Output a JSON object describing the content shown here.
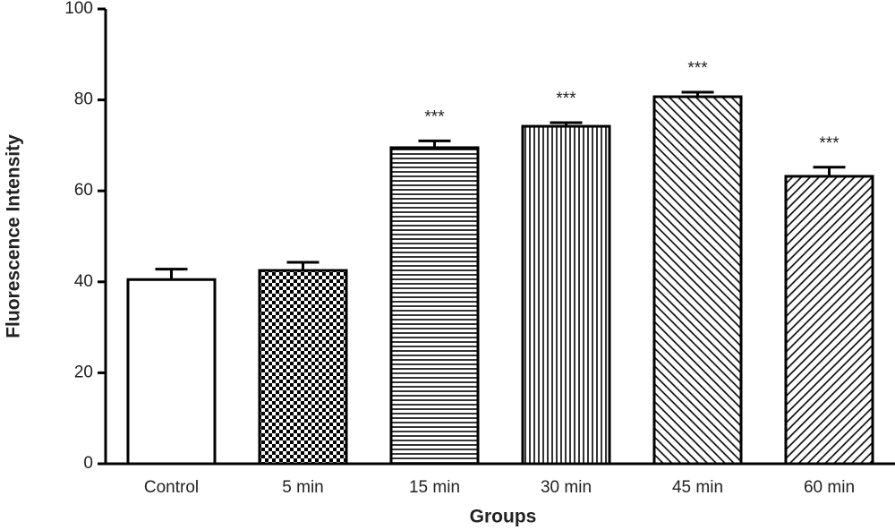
{
  "chart_data": {
    "type": "bar",
    "x_label": "Groups",
    "y_label": "Fluorescence Intensity",
    "categories": [
      "Control",
      "5 min",
      "15 min",
      "30 min",
      "45 min",
      "60 min"
    ],
    "values": [
      40.5,
      42.5,
      69.5,
      74.2,
      80.7,
      63.2
    ],
    "errors": [
      2.3,
      1.8,
      1.5,
      0.8,
      1.0,
      2.0
    ],
    "annotations": [
      null,
      null,
      "***",
      "***",
      "***",
      "***"
    ],
    "patterns": [
      "none",
      "checker",
      "hlines",
      "vlines",
      "diag-up",
      "diag-down"
    ],
    "color": "#000000",
    "ylim": [
      0,
      100
    ],
    "yticks": [
      0,
      20,
      40,
      60,
      80,
      100
    ]
  }
}
